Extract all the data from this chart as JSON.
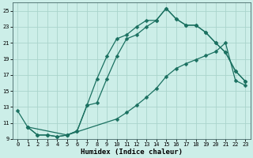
{
  "title": "",
  "xlabel": "Humidex (Indice chaleur)",
  "background_color": "#cceee8",
  "grid_color": "#aad4cc",
  "line_color": "#1a7060",
  "xlim": [
    -0.5,
    23.5
  ],
  "ylim": [
    9,
    26
  ],
  "yticks": [
    9,
    11,
    13,
    15,
    17,
    19,
    21,
    23,
    25
  ],
  "xticks": [
    0,
    1,
    2,
    3,
    4,
    5,
    6,
    7,
    8,
    9,
    10,
    11,
    12,
    13,
    14,
    15,
    16,
    17,
    18,
    19,
    20,
    21,
    22,
    23
  ],
  "line1_x": [
    0,
    1,
    2,
    3,
    4,
    5,
    6,
    7,
    8,
    9,
    10,
    11,
    12,
    13,
    14,
    15,
    16,
    17,
    18,
    19,
    20,
    21,
    22,
    23
  ],
  "line1_y": [
    12.5,
    10.5,
    9.5,
    9.5,
    9.3,
    9.5,
    10.0,
    13.2,
    16.5,
    19.3,
    21.5,
    22.0,
    23.0,
    23.8,
    23.8,
    25.3,
    24.0,
    23.2,
    23.2,
    22.3,
    21.0,
    19.8,
    17.5,
    16.2
  ],
  "line2_x": [
    1,
    2,
    3,
    4,
    5,
    6,
    7,
    8,
    9,
    10,
    11,
    12,
    13,
    14,
    15,
    16,
    17,
    18,
    19,
    20,
    21,
    22,
    23
  ],
  "line2_y": [
    10.5,
    9.5,
    9.5,
    9.3,
    9.5,
    10.0,
    13.2,
    13.5,
    16.5,
    19.3,
    21.5,
    22.0,
    23.0,
    23.8,
    25.3,
    24.0,
    23.2,
    23.2,
    22.3,
    21.0,
    19.8,
    17.5,
    16.2
  ],
  "line3_x": [
    1,
    5,
    10,
    11,
    12,
    13,
    14,
    15,
    16,
    17,
    18,
    19,
    20,
    21,
    22,
    23
  ],
  "line3_y": [
    10.5,
    9.5,
    11.5,
    12.3,
    13.2,
    14.2,
    15.3,
    16.8,
    17.8,
    18.4,
    18.9,
    19.4,
    19.9,
    21.0,
    16.3,
    15.7
  ],
  "xlabel_fontsize": 6.5,
  "tick_fontsize": 5.0,
  "linewidth": 0.9,
  "markersize": 2.5
}
